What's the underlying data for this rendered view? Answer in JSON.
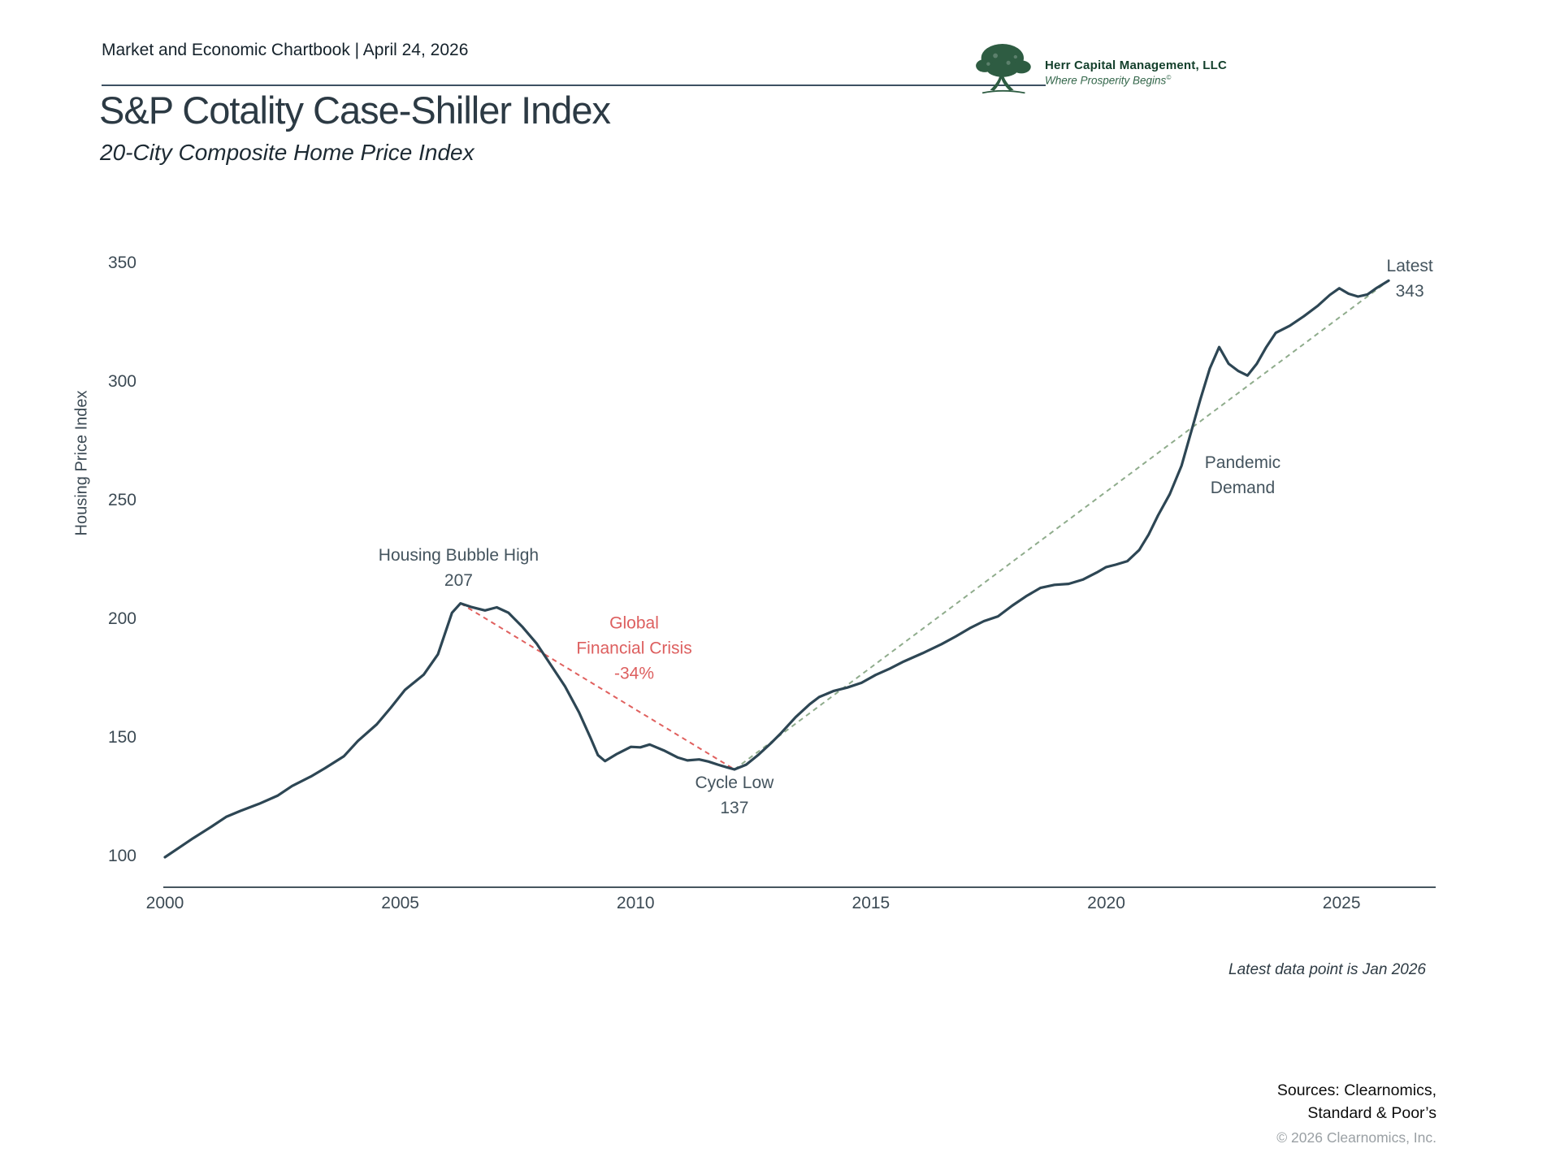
{
  "header": {
    "kicker": "Market and Economic Chartbook | April 24, 2026",
    "title": "S&P Cotality Case-Shiller Index",
    "subtitle": "20-City Composite Home Price Index"
  },
  "logo": {
    "company": "Herr Capital Management, LLC",
    "tagline": "Where Prosperity Begins",
    "tagline_mark": "©"
  },
  "colors": {
    "line": "#2d4654",
    "gfc_dashed": "#e0605e",
    "trend_dashed": "#8fac8c",
    "axis": "#47565f",
    "annotation_text": "#44545e",
    "crisis_text": "#dd5f5f",
    "logo_green": "#2e5c42"
  },
  "chart_data": {
    "type": "line",
    "title": "S&P Cotality Case-Shiller Index",
    "subtitle": "20-City Composite Home Price Index",
    "xlabel": "",
    "ylabel": "Housing Price Index",
    "xlim": [
      2000,
      2027
    ],
    "ylim": [
      100,
      350
    ],
    "x_ticks": [
      2000,
      2005,
      2010,
      2015,
      2020,
      2025
    ],
    "y_ticks": [
      100,
      150,
      200,
      250,
      300,
      350
    ],
    "grid": false,
    "legend": "none",
    "footnote": "Latest data point is Jan 2026",
    "series": [
      {
        "name": "20-City Composite Home Price Index",
        "color": "#2d4654",
        "x": [
          2000.0,
          2000.3,
          2000.6,
          2001.0,
          2001.3,
          2001.6,
          2002.0,
          2002.4,
          2002.7,
          2003.1,
          2003.4,
          2003.8,
          2004.1,
          2004.5,
          2004.8,
          2005.1,
          2005.5,
          2005.8,
          2006.1,
          2006.28,
          2006.5,
          2006.8,
          2007.05,
          2007.3,
          2007.6,
          2007.9,
          2008.2,
          2008.5,
          2008.8,
          2009.05,
          2009.2,
          2009.35,
          2009.6,
          2009.9,
          2010.1,
          2010.3,
          2010.6,
          2010.9,
          2011.1,
          2011.35,
          2011.55,
          2011.75,
          2011.95,
          2012.1,
          2012.35,
          2012.6,
          2012.9,
          2013.1,
          2013.4,
          2013.7,
          2013.9,
          2014.2,
          2014.5,
          2014.8,
          2015.1,
          2015.4,
          2015.7,
          2016.1,
          2016.5,
          2016.8,
          2017.1,
          2017.4,
          2017.7,
          2018.0,
          2018.3,
          2018.6,
          2018.9,
          2019.2,
          2019.5,
          2019.8,
          2020.0,
          2020.2,
          2020.45,
          2020.7,
          2020.9,
          2021.1,
          2021.35,
          2021.6,
          2021.8,
          2022.0,
          2022.2,
          2022.4,
          2022.6,
          2022.8,
          2023.0,
          2023.2,
          2023.4,
          2023.6,
          2023.9,
          2024.2,
          2024.5,
          2024.75,
          2024.95,
          2025.15,
          2025.35,
          2025.55,
          2025.75,
          2026.0
        ],
        "values": [
          100,
          104,
          108,
          113,
          117,
          119.5,
          122.5,
          126,
          130,
          134,
          137.5,
          142.5,
          149,
          156,
          163,
          170.5,
          177,
          185.5,
          203,
          207,
          205.5,
          204,
          205.3,
          203,
          197,
          190,
          181,
          172,
          161,
          150,
          143,
          140.5,
          143.5,
          146.5,
          146.3,
          147.5,
          145,
          142,
          140.8,
          141.2,
          140.3,
          139,
          137.8,
          137,
          139,
          143,
          148.5,
          152.5,
          159,
          164.5,
          167.5,
          170,
          171.5,
          173.5,
          176.8,
          179.5,
          182.5,
          186,
          189.8,
          193,
          196.5,
          199.5,
          201.5,
          206,
          210,
          213.5,
          214.8,
          215.2,
          217,
          220,
          222.3,
          223.3,
          224.8,
          229.5,
          236,
          244,
          253,
          265,
          279,
          293,
          306,
          315,
          308,
          305,
          303,
          308,
          315,
          321,
          324,
          328,
          332.5,
          337,
          339.8,
          337.5,
          336.3,
          337.2,
          340,
          343
        ]
      }
    ],
    "key_points": {
      "housing_bubble_high": {
        "x": 2006.28,
        "value": 207
      },
      "cycle_low": {
        "x": 2012.1,
        "value": 137
      },
      "latest": {
        "x": 2026.0,
        "value": 343
      },
      "gfc_drawdown_pct": "-34%"
    },
    "reference_lines": [
      {
        "name": "gfc-decline",
        "style": "dashed",
        "color": "#e0605e",
        "from": {
          "x": 2006.28,
          "y": 207
        },
        "to": {
          "x": 2012.1,
          "y": 137
        }
      },
      {
        "name": "recovery-trend",
        "style": "dashed",
        "color": "#8fac8c",
        "from": {
          "x": 2012.1,
          "y": 137
        },
        "to": {
          "x": 2026.0,
          "y": 343
        }
      }
    ],
    "annotations": [
      {
        "name": "housing-bubble-high-label",
        "lines": [
          "Housing Bubble High",
          "207"
        ],
        "x": 2006.24,
        "y": 222,
        "color": "#44545e"
      },
      {
        "name": "global-financial-crisis-label",
        "lines": [
          "Global",
          "Financial Crisis",
          "-34%"
        ],
        "x": 2009.97,
        "y": 188,
        "color": "#dd5f5f"
      },
      {
        "name": "cycle-low-label",
        "lines": [
          "Cycle Low",
          "137"
        ],
        "x": 2012.1,
        "y": 126,
        "color": "#44545e"
      },
      {
        "name": "pandemic-demand-label",
        "lines": [
          "Pandemic",
          "Demand"
        ],
        "x": 2022.9,
        "y": 261,
        "color": "#44545e"
      },
      {
        "name": "latest-label",
        "lines": [
          "Latest",
          "343"
        ],
        "x": 2026.45,
        "y": 344,
        "color": "#44545e"
      }
    ]
  },
  "footer": {
    "sources_line1": "Sources: Clearnomics,",
    "sources_line2": "Standard & Poor’s",
    "copyright": "© 2026 Clearnomics, Inc."
  }
}
